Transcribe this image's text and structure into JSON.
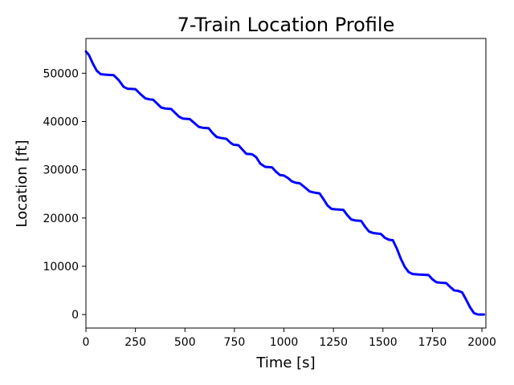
{
  "chart_data": {
    "type": "line",
    "title": "7-Train Location Profile",
    "xlabel": "Time [s]",
    "ylabel": "Location [ft]",
    "xlim": [
      0,
      2020
    ],
    "ylim": [
      -2800,
      57200
    ],
    "xticks": [
      0,
      250,
      500,
      750,
      1000,
      1250,
      1500,
      1750,
      2000
    ],
    "yticks": [
      0,
      10000,
      20000,
      30000,
      40000,
      50000
    ],
    "grid": false,
    "series": [
      {
        "color": "#0000ff",
        "x": [
          0,
          15,
          35,
          55,
          75,
          100,
          140,
          165,
          190,
          210,
          250,
          275,
          300,
          320,
          340,
          360,
          380,
          400,
          430,
          455,
          470,
          490,
          525,
          550,
          570,
          590,
          620,
          640,
          660,
          680,
          710,
          730,
          745,
          770,
          790,
          810,
          840,
          860,
          880,
          905,
          940,
          960,
          980,
          1000,
          1020,
          1040,
          1060,
          1080,
          1110,
          1130,
          1150,
          1180,
          1200,
          1220,
          1240,
          1260,
          1300,
          1320,
          1340,
          1360,
          1390,
          1410,
          1430,
          1450,
          1490,
          1510,
          1530,
          1550,
          1570,
          1590,
          1610,
          1630,
          1650,
          1680,
          1730,
          1750,
          1770,
          1790,
          1820,
          1840,
          1860,
          1880,
          1900,
          1920,
          1940,
          1960,
          1980,
          2000,
          2010
        ],
        "y": [
          54500,
          53800,
          52000,
          50500,
          49800,
          49700,
          49600,
          48600,
          47200,
          46800,
          46700,
          45700,
          44800,
          44600,
          44500,
          43700,
          42900,
          42700,
          42600,
          41600,
          41000,
          40600,
          40500,
          39600,
          38900,
          38700,
          38600,
          37600,
          36800,
          36600,
          36400,
          35600,
          35200,
          35100,
          34200,
          33300,
          33200,
          32600,
          31300,
          30600,
          30500,
          29600,
          28900,
          28800,
          28300,
          27600,
          27300,
          27200,
          26200,
          25500,
          25300,
          25100,
          23900,
          22600,
          21900,
          21800,
          21700,
          20600,
          19700,
          19500,
          19400,
          18200,
          17200,
          16900,
          16700,
          15900,
          15500,
          15400,
          13700,
          11600,
          9900,
          8800,
          8400,
          8300,
          8200,
          7300,
          6700,
          6600,
          6500,
          5700,
          5000,
          4900,
          4600,
          3100,
          1500,
          300,
          0,
          0,
          0
        ]
      }
    ]
  }
}
